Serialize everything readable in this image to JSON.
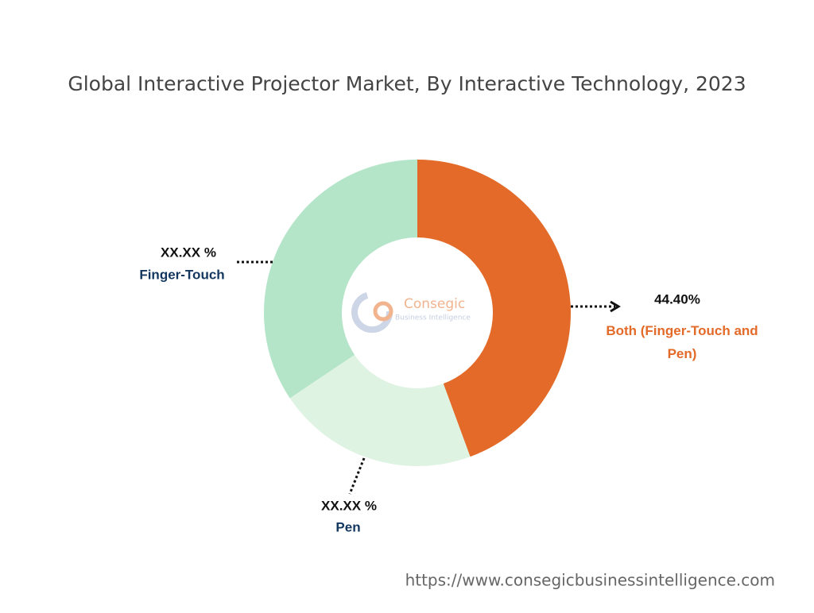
{
  "chart_data": {
    "type": "donut",
    "title": "Global Interactive Projector Market, By Interactive Technology, 2023",
    "categories": [
      "Both (Finger-Touch and Pen)",
      "Pen",
      "Finger-Touch"
    ],
    "values": [
      44.4,
      21.2,
      34.4
    ],
    "value_labels": [
      "44.40%",
      "XX.XX %",
      "XX.XX %"
    ],
    "colors": [
      "#e36a28",
      "#dff3e2",
      "#b5e5c9"
    ]
  },
  "logo": {
    "name": "Consegic",
    "tagline": "Business Intelligence"
  },
  "source": "https://www.consegicbusinessintelligence.com"
}
